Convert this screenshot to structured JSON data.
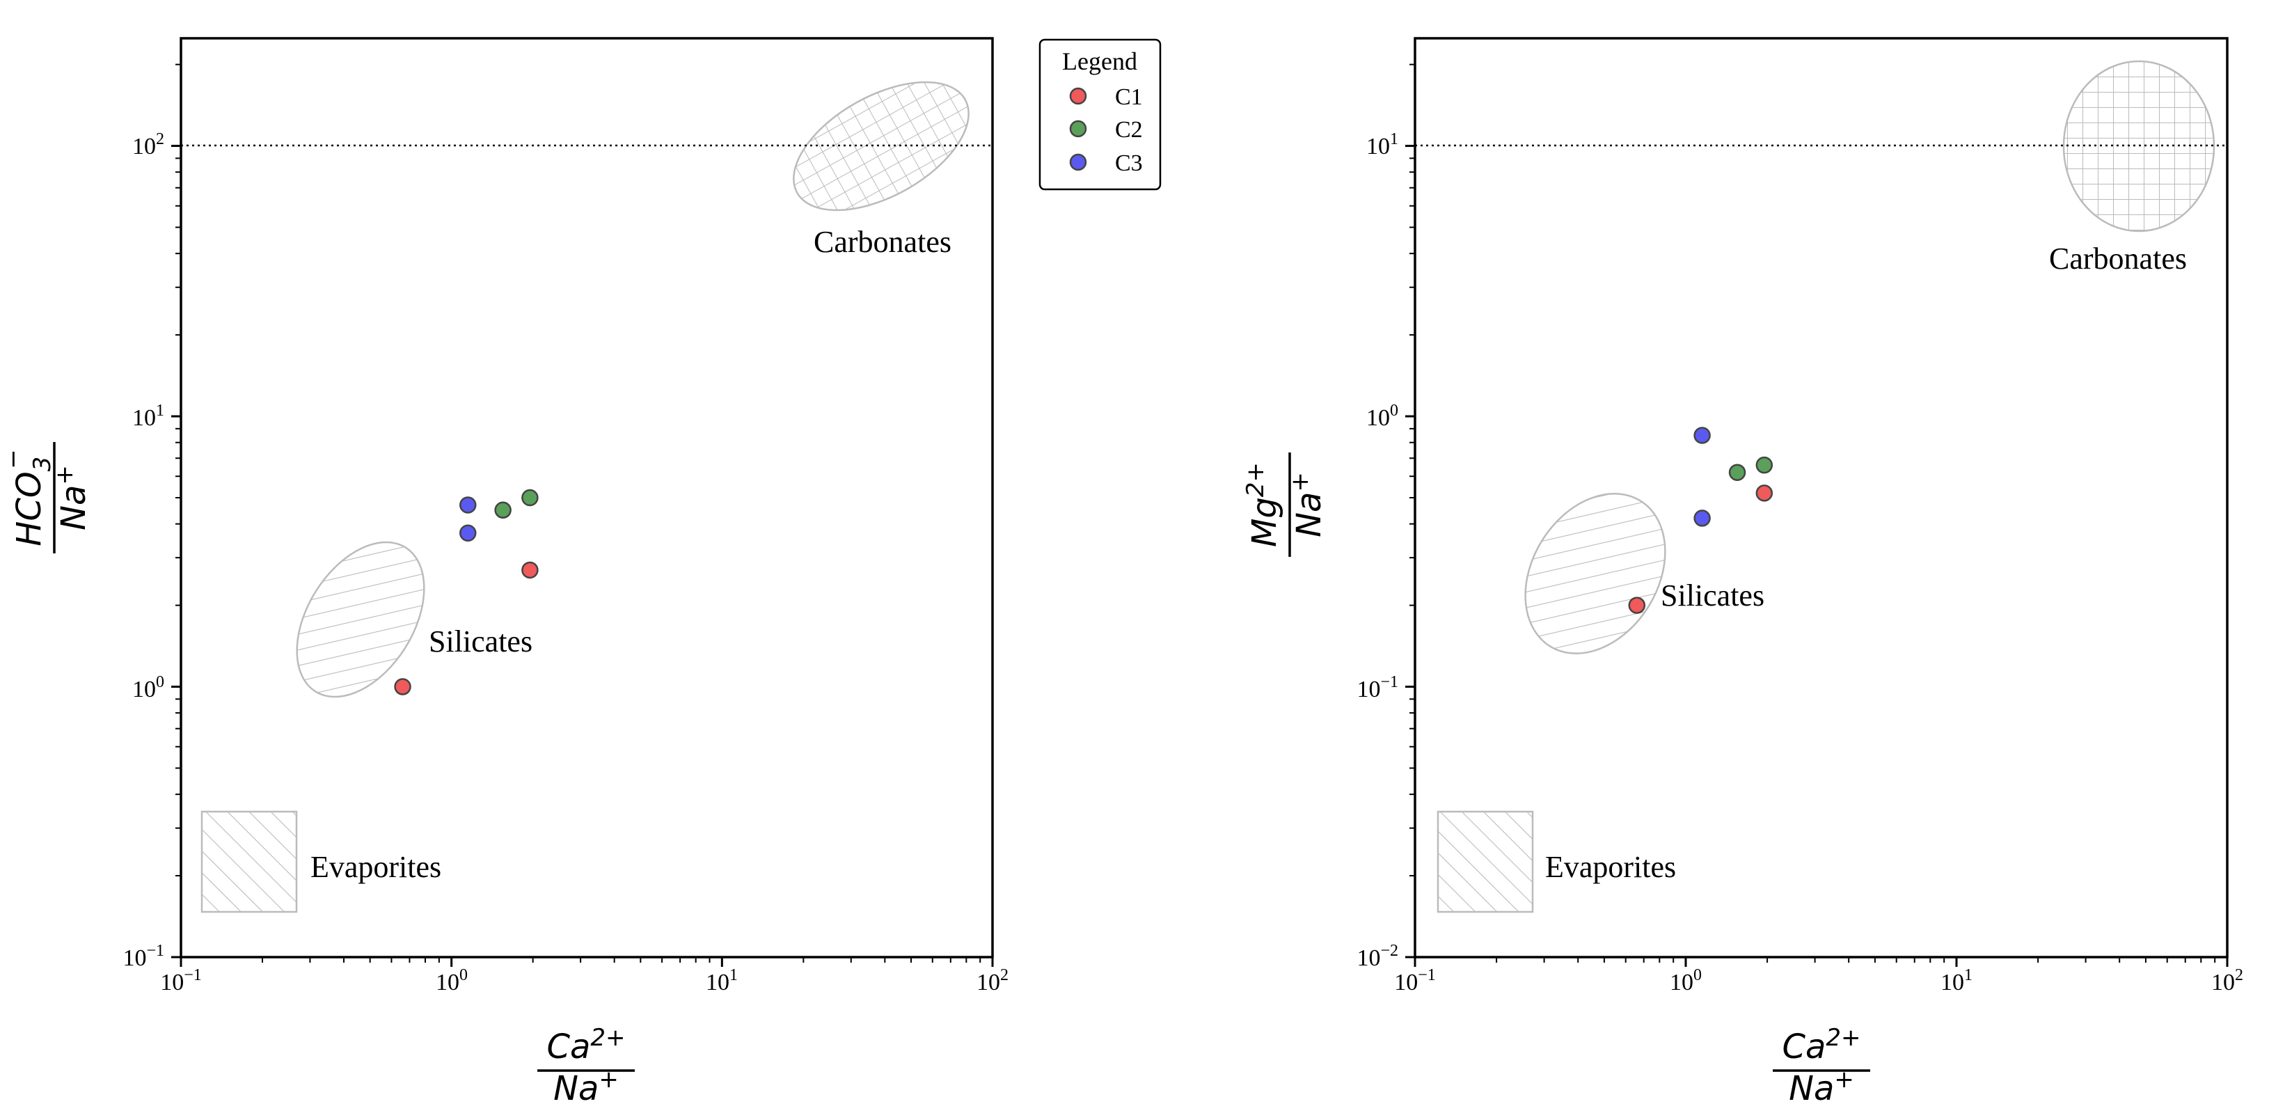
{
  "legend": {
    "title": "Legend",
    "entries": [
      {
        "label": "C1",
        "color": "#f05a5a"
      },
      {
        "label": "C2",
        "color": "#5aa05a"
      },
      {
        "label": "C3",
        "color": "#5a5af0"
      }
    ]
  },
  "region_labels": {
    "carbonates": "Carbonates",
    "silicates": "Silicates",
    "evaporites": "Evaporites"
  },
  "colors": {
    "region_stroke": "#bbbbbb",
    "marker_edge": "#444444",
    "axes": "#000000"
  },
  "chart_data": [
    {
      "type": "scatter",
      "title": "",
      "xlabel": {
        "num": "Ca",
        "num_sup": "2+",
        "den": "Na",
        "den_sup": "+"
      },
      "ylabel": {
        "num": "HCO",
        "num_sub": "3",
        "num_sup": "−",
        "den": "Na",
        "den_sup": "+"
      },
      "xscale": "log",
      "yscale": "log",
      "xlim": [
        0.1,
        100
      ],
      "ylim": [
        0.1,
        250
      ],
      "xticks": [
        {
          "base": "10",
          "exp": "−1"
        },
        {
          "base": "10",
          "exp": "0"
        },
        {
          "base": "10",
          "exp": "1"
        },
        {
          "base": "10",
          "exp": "2"
        }
      ],
      "yticks": [
        {
          "base": "10",
          "exp": "−1"
        },
        {
          "base": "10",
          "exp": "0"
        },
        {
          "base": "10",
          "exp": "1"
        },
        {
          "base": "10",
          "exp": "2"
        }
      ],
      "reference_line_y": 100,
      "series": [
        {
          "name": "C1",
          "points": [
            [
              0.66,
              1.0
            ],
            [
              1.95,
              2.7
            ]
          ]
        },
        {
          "name": "C2",
          "points": [
            [
              1.55,
              4.5
            ],
            [
              1.95,
              5.0
            ]
          ]
        },
        {
          "name": "C3",
          "points": [
            [
              1.15,
              4.7
            ],
            [
              1.15,
              3.7
            ]
          ]
        }
      ],
      "regions": [
        {
          "name": "carbonates",
          "shape": "ellipse",
          "center": [
            40,
            120
          ],
          "hatch": "grid"
        },
        {
          "name": "silicates",
          "shape": "ellipse",
          "center": [
            0.48,
            2.0
          ],
          "hatch": "diagonal"
        },
        {
          "name": "evaporites",
          "shape": "rectangle",
          "x": [
            0.12,
            0.27
          ],
          "y": [
            0.15,
            0.35
          ],
          "hatch": "diagonal"
        }
      ],
      "grid": false,
      "legend": "outside-right-top"
    },
    {
      "type": "scatter",
      "title": "",
      "xlabel": {
        "num": "Ca",
        "num_sup": "2+",
        "den": "Na",
        "den_sup": "+"
      },
      "ylabel": {
        "num": "Mg",
        "num_sup": "2+",
        "den": "Na",
        "den_sup": "+"
      },
      "xscale": "log",
      "yscale": "log",
      "xlim": [
        0.1,
        100
      ],
      "ylim": [
        0.01,
        25
      ],
      "xticks": [
        {
          "base": "10",
          "exp": "−1"
        },
        {
          "base": "10",
          "exp": "0"
        },
        {
          "base": "10",
          "exp": "1"
        },
        {
          "base": "10",
          "exp": "2"
        }
      ],
      "yticks": [
        {
          "base": "10",
          "exp": "−2"
        },
        {
          "base": "10",
          "exp": "−1"
        },
        {
          "base": "10",
          "exp": "0"
        },
        {
          "base": "10",
          "exp": "1"
        }
      ],
      "reference_line_y": 10,
      "series": [
        {
          "name": "C1",
          "points": [
            [
              0.66,
              0.2
            ],
            [
              1.95,
              0.52
            ]
          ]
        },
        {
          "name": "C2",
          "points": [
            [
              1.55,
              0.62
            ],
            [
              1.95,
              0.66
            ]
          ]
        },
        {
          "name": "C3",
          "points": [
            [
              1.15,
              0.85
            ],
            [
              1.15,
              0.42
            ]
          ]
        }
      ],
      "regions": [
        {
          "name": "carbonates",
          "shape": "ellipse",
          "center": [
            50,
            10
          ],
          "hatch": "grid"
        },
        {
          "name": "silicates",
          "shape": "ellipse",
          "center": [
            0.45,
            0.33
          ],
          "hatch": "diagonal"
        },
        {
          "name": "evaporites",
          "shape": "rectangle",
          "x": [
            0.12,
            0.27
          ],
          "y": [
            0.015,
            0.035
          ],
          "hatch": "diagonal"
        }
      ],
      "grid": false,
      "legend": "none"
    }
  ]
}
